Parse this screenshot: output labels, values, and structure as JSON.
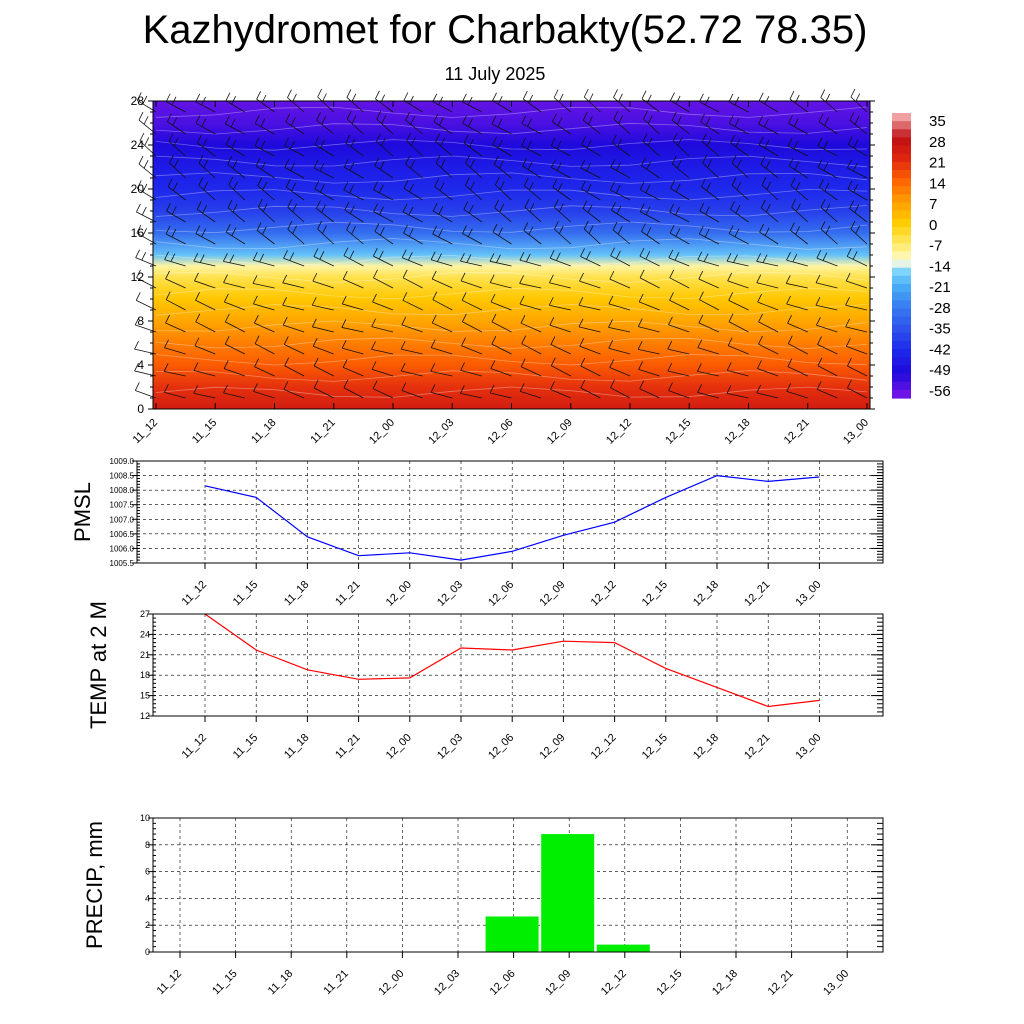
{
  "title": "Kazhydromet for Charbakty(52.72 78.35)",
  "subtitle": "11 July 2025",
  "time_labels": [
    "11_12",
    "11_15",
    "11_18",
    "11_21",
    "12_00",
    "12_03",
    "12_06",
    "12_09",
    "12_12",
    "12_15",
    "12_18",
    "12_21",
    "13_00"
  ],
  "chart_data": [
    {
      "type": "heatmap",
      "title": "",
      "ylabel": "",
      "ylim": [
        0,
        28
      ],
      "yticks": [
        0,
        4,
        8,
        12,
        16,
        20,
        24,
        28
      ],
      "categories": [
        "11_12",
        "11_15",
        "11_18",
        "11_21",
        "12_00",
        "12_03",
        "12_06",
        "12_09",
        "12_12",
        "12_15",
        "12_18",
        "12_21",
        "13_00"
      ],
      "colorbar_labels": [
        "35",
        "28",
        "21",
        "14",
        "7",
        "0",
        "-7",
        "-14",
        "-21",
        "-28",
        "-35",
        "-42",
        "-49",
        "-56"
      ],
      "temperature_profile": {
        "levels": [
          0,
          2,
          4,
          6,
          8,
          10,
          12,
          13,
          14,
          16,
          18,
          20,
          22,
          24,
          26,
          28
        ],
        "values": [
          24,
          20,
          15,
          11,
          6,
          1,
          -5,
          -10,
          -18,
          -30,
          -38,
          -42,
          -45,
          -49,
          -53,
          -55
        ]
      },
      "colors": {
        "hot": "#c81010",
        "warm": "#ff7a00",
        "mild": "#ffd000",
        "neutral": "#fff8c0",
        "cool": "#4fc3f7",
        "cold": "#2f50e0",
        "coldest": "#1a10d8"
      },
      "wind_barbs": true,
      "grid": false
    },
    {
      "type": "line",
      "ylabel": "PMSL",
      "categories": [
        "11_12",
        "11_15",
        "11_18",
        "11_21",
        "12_00",
        "12_03",
        "12_06",
        "12_09",
        "12_12",
        "12_15",
        "12_18",
        "12_21",
        "13_00"
      ],
      "series": [
        {
          "values": [
            1008.15,
            1007.75,
            1006.4,
            1005.75,
            1005.85,
            1005.6,
            1005.9,
            1006.45,
            1006.9,
            1007.75,
            1008.5,
            1008.3,
            1008.45
          ]
        }
      ],
      "ylim": [
        1005.5,
        1009.0
      ],
      "yticks": [
        "1005.5",
        "1006.0",
        "1006.5",
        "1007.0",
        "1007.5",
        "1008.0",
        "1008.5",
        "1009.0"
      ],
      "color": "#0000ff",
      "grid": true
    },
    {
      "type": "line",
      "ylabel": "TEMP at 2 M",
      "categories": [
        "11_12",
        "11_15",
        "11_18",
        "11_21",
        "12_00",
        "12_03",
        "12_06",
        "12_09",
        "12_12",
        "12_15",
        "12_18",
        "12_21",
        "13_00"
      ],
      "series": [
        {
          "values": [
            27,
            21.7,
            18.8,
            17.4,
            17.6,
            22.0,
            21.7,
            23.0,
            22.8,
            19.0,
            16.2,
            13.4,
            14.3
          ]
        }
      ],
      "ylim": [
        12,
        27
      ],
      "yticks": [
        "12",
        "15",
        "18",
        "21",
        "24",
        "27"
      ],
      "color": "#ff0000",
      "grid": true
    },
    {
      "type": "bar",
      "ylabel": "PRECIP, mm",
      "categories": [
        "11_12",
        "11_15",
        "11_18",
        "11_21",
        "12_00",
        "12_03",
        "12_06",
        "12_09",
        "12_12",
        "12_15",
        "12_18",
        "12_21",
        "13_00"
      ],
      "values": [
        0,
        0,
        0,
        0,
        0,
        2.65,
        8.8,
        0.55,
        0,
        0,
        0,
        0,
        0
      ],
      "ylim": [
        0,
        10
      ],
      "yticks": [
        "0",
        "2",
        "4",
        "6",
        "8",
        "10"
      ],
      "color": "#00ee00",
      "grid": true
    }
  ]
}
